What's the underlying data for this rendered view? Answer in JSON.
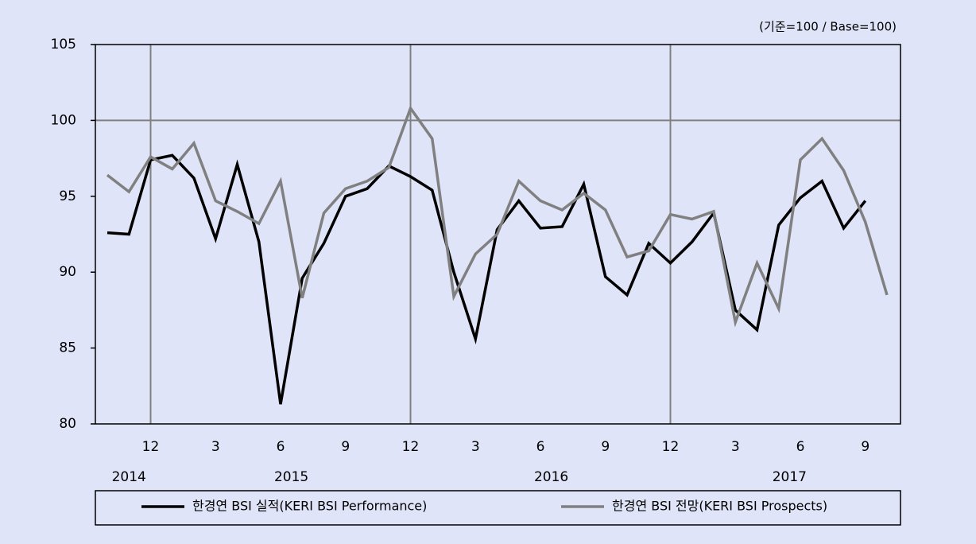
{
  "chart_data": {
    "type": "line",
    "unit_note": "(기준=100 / Base=100)",
    "categories": [
      null,
      null,
      "12",
      null,
      null,
      "3",
      null,
      null,
      "6",
      null,
      null,
      "9",
      null,
      null,
      "12",
      null,
      null,
      "3",
      null,
      null,
      "6",
      null,
      null,
      "9",
      null,
      null,
      "12",
      null,
      null,
      "3",
      null,
      null,
      "6",
      null,
      null,
      "9",
      null
    ],
    "x_groups": [
      {
        "label": "2014",
        "span": 3
      },
      {
        "label": "2015",
        "span": 12
      },
      {
        "label": "2016",
        "span": 12
      },
      {
        "label": "2017",
        "span": 10
      }
    ],
    "group_end_lines": true,
    "hlines": [
      100
    ],
    "ylim": [
      80,
      105
    ],
    "yticks": [
      80,
      85,
      90,
      95,
      100,
      105
    ],
    "series": [
      {
        "name": "한경연 BSI 실적(KERI BSI Performance)",
        "color": "#000000",
        "values": [
          92.6,
          92.5,
          97.4,
          97.7,
          96.2,
          92.2,
          97.1,
          92.0,
          81.3,
          89.6,
          91.9,
          95.0,
          95.5,
          97.0,
          96.3,
          95.4,
          90.0,
          85.6,
          92.8,
          94.7,
          92.9,
          93.0,
          95.8,
          89.7,
          88.5,
          91.9,
          90.6,
          92.0,
          93.9,
          87.5,
          86.2,
          93.1,
          94.9,
          96.0,
          92.9,
          94.7,
          null
        ]
      },
      {
        "name": "한경연 BSI 전망(KERI BSI Prospects)",
        "color": "#808080",
        "values": [
          96.4,
          95.3,
          97.6,
          96.8,
          98.5,
          94.7,
          94.0,
          93.2,
          96.0,
          88.3,
          93.9,
          95.5,
          96.0,
          96.9,
          100.8,
          98.8,
          88.4,
          91.2,
          92.5,
          96.0,
          94.7,
          94.1,
          95.2,
          94.1,
          91.0,
          91.4,
          93.8,
          93.5,
          94.0,
          86.7,
          90.6,
          87.6,
          97.4,
          98.8,
          96.7,
          93.3,
          88.5
        ]
      }
    ]
  }
}
